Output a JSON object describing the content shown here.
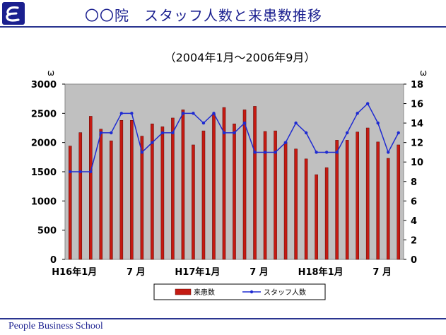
{
  "header": {
    "title": "〇〇院　スタッフ人数と来患数推移"
  },
  "footer": {
    "brand": "People Business School"
  },
  "colors": {
    "accent": "#1a1f8f",
    "plot_bg": "#c0c0c0",
    "bar": "#c41a12",
    "line": "#1f2bd1"
  },
  "icons": {
    "logo": "stylized-e-logo-icon"
  },
  "chart_data": {
    "type": "bar",
    "title": "（2004年1月～2006年9月）",
    "y_left_unit": "ω",
    "y_right_unit": "ω",
    "ylim_left": [
      0,
      3000
    ],
    "ylim_right": [
      0,
      18
    ],
    "left_ticks": [
      "3000",
      "2500",
      "2000",
      "1500",
      "1000",
      "500",
      "0"
    ],
    "right_ticks": [
      "18",
      "16",
      "14",
      "12",
      "10",
      "8",
      "6",
      "4",
      "2",
      "0"
    ],
    "x_tick_labels": [
      {
        "index": 0,
        "label": "H16年1月"
      },
      {
        "index": 6,
        "label": "7 月"
      },
      {
        "index": 12,
        "label": "H17年1月"
      },
      {
        "index": 18,
        "label": "7 月"
      },
      {
        "index": 24,
        "label": "H18年1月"
      },
      {
        "index": 30,
        "label": "7 月"
      }
    ],
    "series": [
      {
        "name": "来患数",
        "type": "bar",
        "axis": "left",
        "values": [
          1940,
          2170,
          2450,
          2230,
          2030,
          2380,
          2380,
          2110,
          2320,
          2270,
          2420,
          2560,
          1960,
          2200,
          2490,
          2600,
          2320,
          2560,
          2620,
          2190,
          2200,
          2010,
          1890,
          1720,
          1450,
          1570,
          2040,
          2040,
          2180,
          2250,
          2010,
          1730,
          1960
        ]
      },
      {
        "name": "スタッフ人数",
        "type": "line",
        "axis": "right",
        "values": [
          9,
          9,
          9,
          13,
          13,
          15,
          15,
          11,
          12,
          13,
          13,
          15,
          15,
          14,
          15,
          13,
          13,
          14,
          11,
          11,
          11,
          12,
          14,
          13,
          11,
          11,
          11,
          13,
          15,
          16,
          14,
          11,
          13
        ]
      }
    ]
  }
}
